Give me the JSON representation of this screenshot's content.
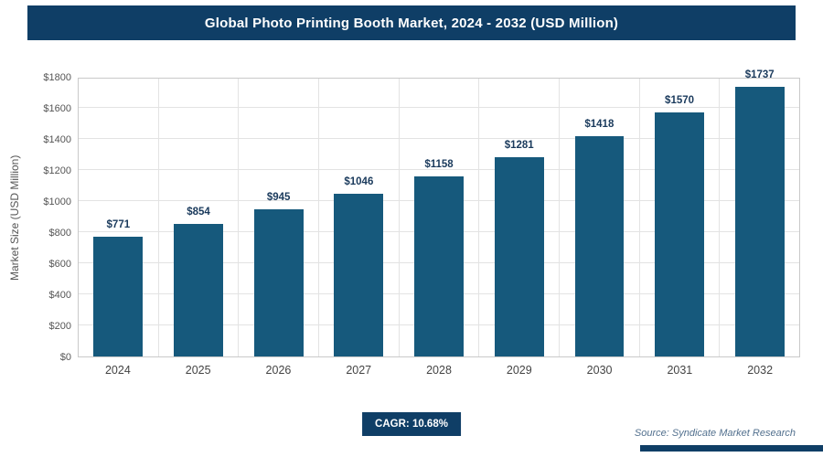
{
  "header": {
    "title": "Global Photo Printing Booth Market, 2024 - 2032 (USD Million)"
  },
  "chart_data": {
    "type": "bar",
    "title": "Global Photo Printing Booth Market, 2024 - 2032 (USD Million)",
    "categories": [
      "2024",
      "2025",
      "2026",
      "2027",
      "2028",
      "2029",
      "2030",
      "2031",
      "2032"
    ],
    "values": [
      771,
      854,
      945,
      1046,
      1158,
      1281,
      1418,
      1570,
      1737
    ],
    "labels": [
      "$771",
      "$854",
      "$945",
      "$1046",
      "$1158",
      "$1281",
      "$1418",
      "$1570",
      "$1737"
    ],
    "xlabel": "",
    "ylabel": "Market Size (USD Million)",
    "ylim": [
      0,
      1800
    ],
    "ytick_step": 200,
    "yticks": [
      "$0",
      "$200",
      "$400",
      "$600",
      "$800",
      "$1000",
      "$1200",
      "$1400",
      "$1600",
      "$1800"
    ],
    "grid": true,
    "legend": "none"
  },
  "footer": {
    "cagr_label": "CAGR: 10.68%",
    "source": "Source: Syndicate Market Research"
  },
  "colors": {
    "header_bg": "#0f3e66",
    "bar": "#16597c",
    "value_label": "#1a3a5c",
    "accent_bar": "#0f3e66"
  }
}
